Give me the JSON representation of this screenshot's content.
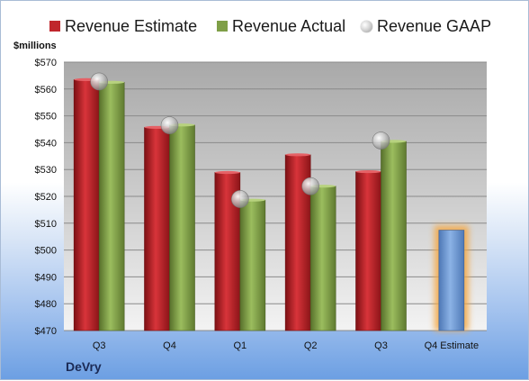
{
  "chart_data": {
    "type": "bar",
    "title": "",
    "unit_label": "$millions",
    "company": "DeVry",
    "categories": [
      "Q3",
      "Q4",
      "Q1",
      "Q2",
      "Q3",
      "Q4 Estimate"
    ],
    "ylim": [
      470,
      570
    ],
    "y_ticks": [
      "$470",
      "$480",
      "$490",
      "$500",
      "$510",
      "$520",
      "$530",
      "$540",
      "$550",
      "$560",
      "$570"
    ],
    "y_tick_values": [
      470,
      480,
      490,
      500,
      510,
      520,
      530,
      540,
      550,
      560,
      570
    ],
    "grid": true,
    "legend_position": "top",
    "series": [
      {
        "name": "Revenue Estimate",
        "kind": "bar",
        "color": "#c0262c",
        "values": [
          563.5,
          545.7,
          528.9,
          535.5,
          529.2,
          507.4
        ]
      },
      {
        "name": "Revenue Actual",
        "kind": "bar",
        "color": "#7f9f47",
        "values": [
          562.5,
          546.6,
          518.6,
          523.8,
          540.5,
          null
        ]
      },
      {
        "name": "Revenue GAAP",
        "kind": "point",
        "color": "#bdbdbd",
        "values": [
          562.8,
          546.5,
          519.0,
          523.8,
          540.8,
          null
        ]
      }
    ],
    "highlight_category": "Q4 Estimate",
    "highlight_bar_color": "#6f9bd6",
    "highlight_glow_color": "#f5a742"
  }
}
